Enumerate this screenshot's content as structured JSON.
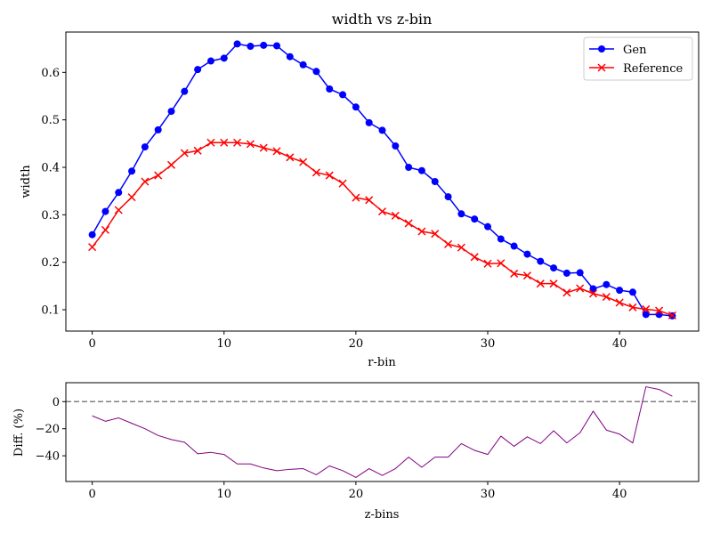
{
  "chart_data": [
    {
      "type": "line",
      "title": "width vs z-bin",
      "xlabel": "r-bin",
      "ylabel": "width",
      "xlim": [
        -2,
        46
      ],
      "ylim": [
        0.055,
        0.685
      ],
      "xticks": [
        0,
        10,
        20,
        30,
        40
      ],
      "xtick_labels": [
        "0",
        "10",
        "20",
        "30",
        "40"
      ],
      "yticks": [
        0.1,
        0.2,
        0.3,
        0.4,
        0.5,
        0.6
      ],
      "ytick_labels": [
        "0.1",
        "0.2",
        "0.3",
        "0.4",
        "0.5",
        "0.6"
      ],
      "grid": false,
      "legend": "top-right",
      "x": [
        0,
        1,
        2,
        3,
        4,
        5,
        6,
        7,
        8,
        9,
        10,
        11,
        12,
        13,
        14,
        15,
        16,
        17,
        18,
        19,
        20,
        21,
        22,
        23,
        24,
        25,
        26,
        27,
        28,
        29,
        30,
        31,
        32,
        33,
        34,
        35,
        36,
        37,
        38,
        39,
        40,
        41,
        42,
        43,
        44
      ],
      "series": [
        {
          "name": "Gen",
          "color": "#0000ff",
          "marker": "circle",
          "values": [
            0.258,
            0.307,
            0.347,
            0.392,
            0.443,
            0.479,
            0.518,
            0.56,
            0.606,
            0.624,
            0.63,
            0.66,
            0.655,
            0.657,
            0.656,
            0.633,
            0.616,
            0.602,
            0.565,
            0.553,
            0.527,
            0.494,
            0.478,
            0.445,
            0.4,
            0.393,
            0.37,
            0.338,
            0.302,
            0.291,
            0.275,
            0.249,
            0.234,
            0.217,
            0.202,
            0.188,
            0.177,
            0.178,
            0.144,
            0.153,
            0.141,
            0.137,
            0.09,
            0.09,
            0.087
          ]
        },
        {
          "name": "Reference",
          "color": "#ff0000",
          "marker": "x",
          "values": [
            0.232,
            0.268,
            0.31,
            0.337,
            0.37,
            0.383,
            0.405,
            0.43,
            0.435,
            0.452,
            0.452,
            0.452,
            0.449,
            0.441,
            0.434,
            0.421,
            0.411,
            0.389,
            0.383,
            0.366,
            0.336,
            0.331,
            0.307,
            0.298,
            0.282,
            0.265,
            0.26,
            0.238,
            0.231,
            0.211,
            0.197,
            0.198,
            0.176,
            0.172,
            0.155,
            0.155,
            0.136,
            0.145,
            0.134,
            0.127,
            0.115,
            0.105,
            0.101,
            0.098,
            0.088
          ]
        }
      ]
    },
    {
      "type": "line",
      "title": "",
      "xlabel": "z-bins",
      "ylabel": "Diff. (%)",
      "xlim": [
        -2,
        46
      ],
      "ylim": [
        -59,
        14
      ],
      "xticks": [
        0,
        10,
        20,
        30,
        40
      ],
      "xtick_labels": [
        "0",
        "10",
        "20",
        "30",
        "40"
      ],
      "yticks": [
        -40,
        -20,
        0
      ],
      "ytick_labels": [
        "−40",
        "−20",
        "0"
      ],
      "reference_line": {
        "y": 0,
        "color": "#808080",
        "style": "dashed"
      },
      "grid": false,
      "x": [
        0,
        1,
        2,
        3,
        4,
        5,
        6,
        7,
        8,
        9,
        10,
        11,
        12,
        13,
        14,
        15,
        16,
        17,
        18,
        19,
        20,
        21,
        22,
        23,
        24,
        25,
        26,
        27,
        28,
        29,
        30,
        31,
        32,
        33,
        34,
        35,
        36,
        37,
        38,
        39,
        40,
        41,
        42,
        43,
        44
      ],
      "series": [
        {
          "color": "#800080",
          "values": [
            -10.5,
            -14.5,
            -12,
            -16,
            -20,
            -25,
            -28,
            -30,
            -38.5,
            -37.5,
            -39,
            -46,
            -46,
            -49,
            -51,
            -50,
            -49.5,
            -54,
            -47.5,
            -51,
            -56,
            -49.5,
            -54.5,
            -49.5,
            -41,
            -48.5,
            -41,
            -41,
            -31,
            -36,
            -39,
            -25.5,
            -33,
            -26,
            -31,
            -21.5,
            -30.5,
            -23,
            -7,
            -21,
            -24,
            -30.5,
            11,
            9,
            4
          ]
        }
      ]
    }
  ]
}
